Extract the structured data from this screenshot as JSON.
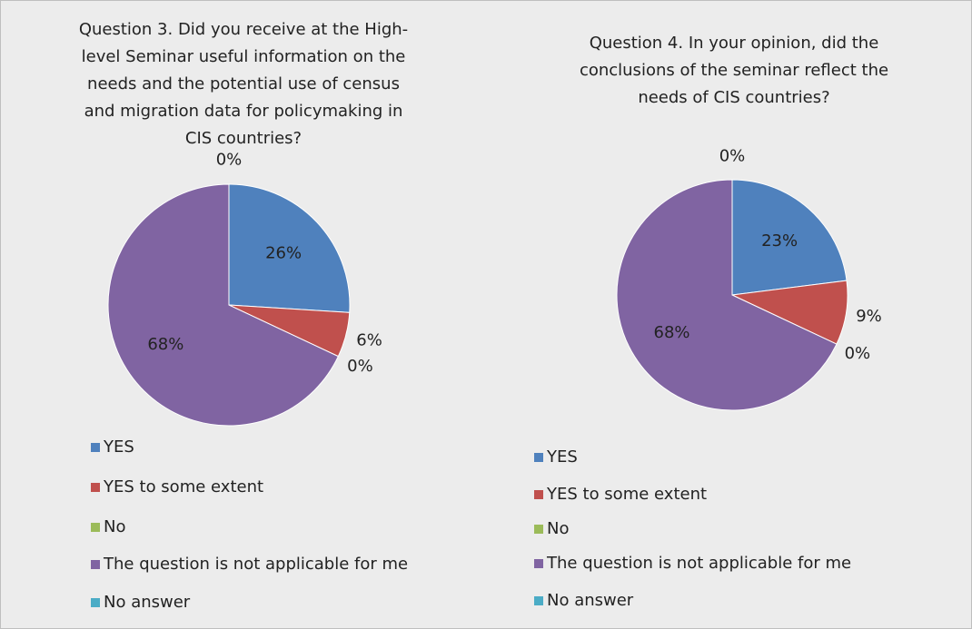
{
  "chart_data": [
    {
      "type": "pie",
      "title": [
        "Question 3. Did you receive at the High-",
        "level Seminar useful information on the",
        "needs and the potential use of census",
        "and migration data for policymaking in",
        "CIS countries?"
      ],
      "categories": [
        "YES",
        "YES to some extent",
        "No",
        "The question is not applicable for me",
        "No answer"
      ],
      "colors": [
        "#4f81bd",
        "#c0504d",
        "#9bbb59",
        "#8064a2",
        "#4bacc6"
      ],
      "values": [
        26,
        6,
        0,
        68,
        0
      ],
      "value_labels": [
        "26%",
        "6%",
        "0%",
        "68%",
        "0%"
      ]
    },
    {
      "type": "pie",
      "title": [
        "Question 4. In your opinion, did the",
        "conclusions of the seminar reflect the",
        "needs of CIS countries?"
      ],
      "categories": [
        "YES",
        "YES to some extent",
        "No",
        "The question is not applicable for me",
        "No answer"
      ],
      "colors": [
        "#4f81bd",
        "#c0504d",
        "#9bbb59",
        "#8064a2",
        "#4bacc6"
      ],
      "values": [
        23,
        9,
        0,
        68,
        0
      ],
      "value_labels": [
        "23%",
        "9%",
        "0%",
        "68%",
        "0%"
      ]
    }
  ]
}
